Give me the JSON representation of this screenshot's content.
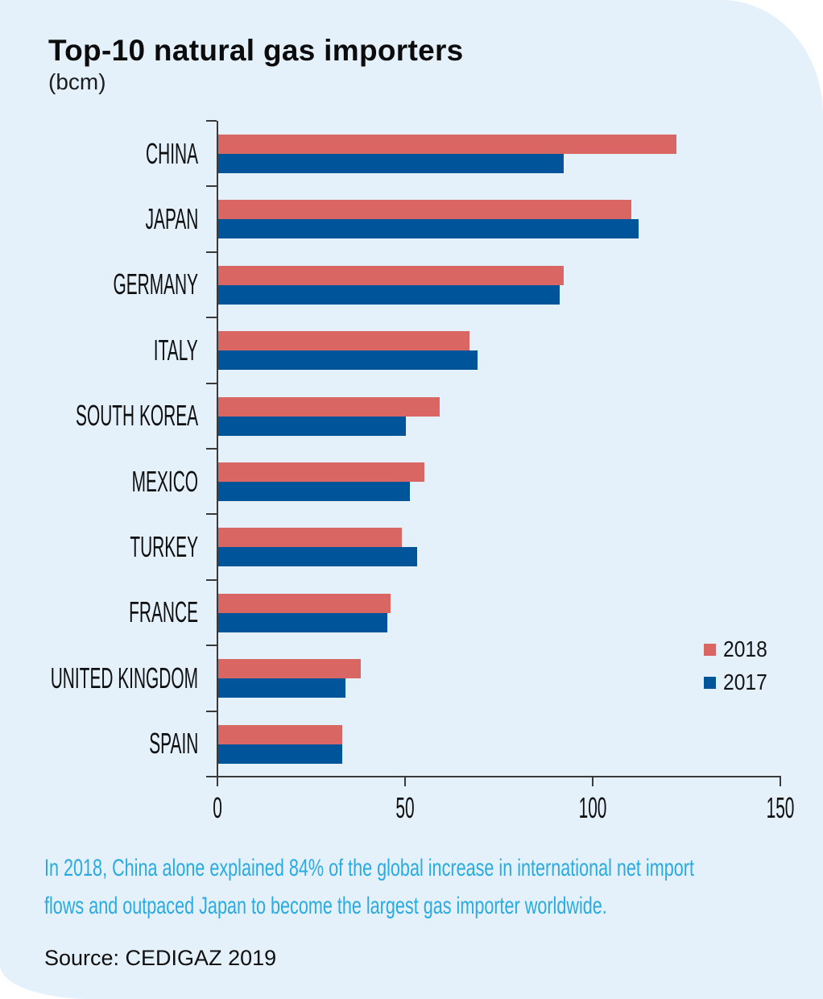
{
  "header": {
    "title": "Top-10 natural gas importers",
    "unit": "(bcm)"
  },
  "chart_data": {
    "type": "bar",
    "orientation": "horizontal",
    "title": "Top-10 natural gas importers",
    "unit_label": "(bcm)",
    "categories": [
      "CHINA",
      "JAPAN",
      "GERMANY",
      "ITALY",
      "SOUTH KOREA",
      "MEXICO",
      "TURKEY",
      "FRANCE",
      "UNITED KINGDOM",
      "SPAIN"
    ],
    "series": [
      {
        "name": "2018",
        "color": "#d96663",
        "values": [
          122,
          110,
          92,
          67,
          59,
          55,
          49,
          46,
          38,
          33
        ]
      },
      {
        "name": "2017",
        "color": "#00559a",
        "values": [
          92,
          112,
          91,
          69,
          50,
          51,
          53,
          45,
          34,
          33
        ]
      }
    ],
    "xlabel": "",
    "ylabel": "",
    "xlim": [
      0,
      150
    ],
    "xticks": [
      0,
      50,
      100,
      150
    ],
    "grid": false,
    "legend_position": "right-middle"
  },
  "legend": {
    "items": [
      {
        "label": "2018",
        "color": "#d96663"
      },
      {
        "label": "2017",
        "color": "#00559a"
      }
    ]
  },
  "caption": "In 2018, China alone explained 84% of the global increase in international net import\nflows and outpaced Japan to become the largest gas importer worldwide.",
  "source": "Source: CEDIGAZ 2019",
  "colors": {
    "background": "#e4f1fb",
    "bar_2018": "#d96663",
    "bar_2017": "#00559a",
    "caption": "#29abe2",
    "axis": "#3a3a3a",
    "text": "#0f0f0f"
  }
}
